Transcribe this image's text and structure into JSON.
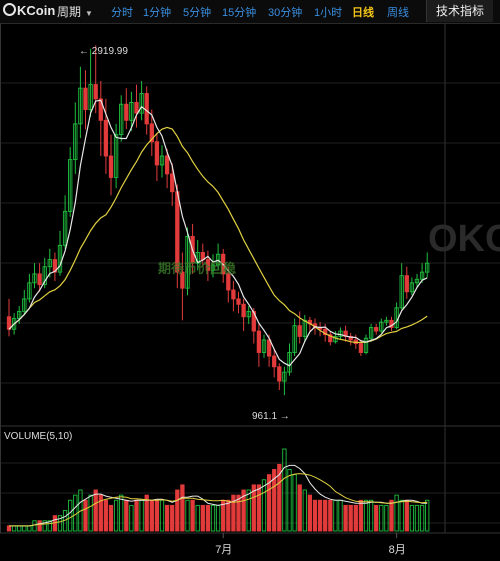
{
  "toolbar": {
    "logo": "KCoin",
    "period_label": "周期",
    "intervals": [
      {
        "label": "分时"
      },
      {
        "label": "1分钟"
      },
      {
        "label": "5分钟"
      },
      {
        "label": "15分钟"
      },
      {
        "label": "30分钟"
      },
      {
        "label": "1小时"
      },
      {
        "label": "日线",
        "active": true
      },
      {
        "label": "周线"
      }
    ],
    "tech_button": "技术指标"
  },
  "watermark": "OKCoin",
  "overlay_caption": "期待币价回稳",
  "price_chart": {
    "high_label": "← 2919.99",
    "low_label": "961.1 →"
  },
  "volume_chart": {
    "title": "VOLUME(5,10)"
  },
  "x_ticks": [
    "7月",
    "8月"
  ],
  "colors": {
    "up": "#1fbf3f",
    "down": "#e23b3b",
    "ma_fast": "#e8e8e8",
    "ma_slow": "#e0d040",
    "grid": "#1f1f1f",
    "tab": "#3a8fe0",
    "tab_active": "#f5c518"
  },
  "chart_data": {
    "type": "candlestick",
    "days": 83,
    "high": 2919.99,
    "low": 961.1,
    "x_tick_positions": [
      {
        "label": "7月",
        "day": 42
      },
      {
        "label": "8月",
        "day": 76
      }
    ],
    "candles": [
      [
        1400,
        1330,
        1500,
        1290,
        "down"
      ],
      [
        1330,
        1390,
        1420,
        1300,
        "up"
      ],
      [
        1390,
        1430,
        1460,
        1360,
        "up"
      ],
      [
        1430,
        1500,
        1550,
        1410,
        "up"
      ],
      [
        1500,
        1590,
        1640,
        1480,
        "up"
      ],
      [
        1590,
        1640,
        1700,
        1560,
        "up"
      ],
      [
        1640,
        1580,
        1700,
        1540,
        "down"
      ],
      [
        1580,
        1680,
        1730,
        1560,
        "up"
      ],
      [
        1680,
        1720,
        1780,
        1620,
        "up"
      ],
      [
        1720,
        1650,
        1760,
        1600,
        "down"
      ],
      [
        1650,
        1800,
        1880,
        1630,
        "up"
      ],
      [
        1800,
        1990,
        2080,
        1780,
        "up"
      ],
      [
        1990,
        2280,
        2350,
        1960,
        "up"
      ],
      [
        2280,
        2480,
        2600,
        2200,
        "up"
      ],
      [
        2480,
        2680,
        2800,
        2400,
        "up"
      ],
      [
        2680,
        2560,
        2780,
        2450,
        "down"
      ],
      [
        2560,
        2700,
        2900,
        2520,
        "up"
      ],
      [
        2700,
        2620,
        2919.99,
        2540,
        "down"
      ],
      [
        2620,
        2500,
        2720,
        2300,
        "down"
      ],
      [
        2500,
        2300,
        2620,
        2200,
        "down"
      ],
      [
        2300,
        2180,
        2420,
        2080,
        "down"
      ],
      [
        2180,
        2420,
        2480,
        2120,
        "up"
      ],
      [
        2420,
        2590,
        2640,
        2380,
        "up"
      ],
      [
        2590,
        2500,
        2680,
        2450,
        "down"
      ],
      [
        2500,
        2600,
        2660,
        2440,
        "up"
      ],
      [
        2600,
        2540,
        2700,
        2460,
        "down"
      ],
      [
        2540,
        2650,
        2720,
        2500,
        "up"
      ],
      [
        2650,
        2480,
        2690,
        2420,
        "down"
      ],
      [
        2480,
        2380,
        2560,
        2300,
        "down"
      ],
      [
        2380,
        2250,
        2430,
        2160,
        "down"
      ],
      [
        2250,
        2300,
        2360,
        2180,
        "up"
      ],
      [
        2300,
        2200,
        2340,
        2120,
        "down"
      ],
      [
        2200,
        2100,
        2260,
        2020,
        "down"
      ],
      [
        2100,
        1650,
        2140,
        1560,
        "down"
      ],
      [
        1650,
        1560,
        1760,
        1380,
        "down"
      ],
      [
        1560,
        1850,
        1900,
        1520,
        "up"
      ],
      [
        1850,
        1700,
        1920,
        1640,
        "down"
      ],
      [
        1700,
        1760,
        1830,
        1660,
        "up"
      ],
      [
        1760,
        1720,
        1810,
        1680,
        "down"
      ],
      [
        1720,
        1660,
        1770,
        1600,
        "down"
      ],
      [
        1660,
        1690,
        1750,
        1620,
        "up"
      ],
      [
        1690,
        1750,
        1810,
        1660,
        "up"
      ],
      [
        1750,
        1640,
        1780,
        1590,
        "down"
      ],
      [
        1640,
        1550,
        1680,
        1480,
        "down"
      ],
      [
        1550,
        1500,
        1600,
        1430,
        "down"
      ],
      [
        1500,
        1470,
        1540,
        1420,
        "down"
      ],
      [
        1470,
        1400,
        1500,
        1320,
        "down"
      ],
      [
        1400,
        1430,
        1460,
        1360,
        "up"
      ],
      [
        1430,
        1320,
        1450,
        1250,
        "down"
      ],
      [
        1320,
        1200,
        1360,
        1120,
        "down"
      ],
      [
        1200,
        1270,
        1300,
        1170,
        "up"
      ],
      [
        1270,
        1180,
        1300,
        1120,
        "down"
      ],
      [
        1180,
        1120,
        1220,
        1060,
        "down"
      ],
      [
        1120,
        1040,
        1140,
        990,
        "down"
      ],
      [
        1040,
        1090,
        1120,
        961.1,
        "up"
      ],
      [
        1090,
        1200,
        1250,
        1070,
        "up"
      ],
      [
        1200,
        1350,
        1390,
        1180,
        "up"
      ],
      [
        1350,
        1290,
        1430,
        1250,
        "down"
      ],
      [
        1290,
        1380,
        1410,
        1260,
        "up"
      ],
      [
        1380,
        1360,
        1400,
        1320,
        "down"
      ],
      [
        1360,
        1340,
        1390,
        1300,
        "down"
      ],
      [
        1340,
        1330,
        1370,
        1290,
        "down"
      ],
      [
        1330,
        1300,
        1360,
        1260,
        "down"
      ],
      [
        1300,
        1260,
        1320,
        1240,
        "down"
      ],
      [
        1260,
        1290,
        1320,
        1250,
        "up"
      ],
      [
        1290,
        1320,
        1340,
        1270,
        "up"
      ],
      [
        1320,
        1290,
        1350,
        1260,
        "down"
      ],
      [
        1290,
        1270,
        1310,
        1240,
        "down"
      ],
      [
        1270,
        1250,
        1300,
        1220,
        "down"
      ],
      [
        1250,
        1200,
        1270,
        1180,
        "down"
      ],
      [
        1200,
        1280,
        1300,
        1190,
        "up"
      ],
      [
        1280,
        1340,
        1360,
        1260,
        "up"
      ],
      [
        1340,
        1320,
        1360,
        1300,
        "down"
      ],
      [
        1320,
        1370,
        1390,
        1310,
        "up"
      ],
      [
        1370,
        1380,
        1400,
        1350,
        "up"
      ],
      [
        1380,
        1340,
        1400,
        1320,
        "down"
      ],
      [
        1340,
        1450,
        1480,
        1330,
        "up"
      ],
      [
        1450,
        1630,
        1700,
        1440,
        "up"
      ],
      [
        1630,
        1540,
        1680,
        1500,
        "down"
      ],
      [
        1540,
        1590,
        1620,
        1520,
        "up"
      ],
      [
        1590,
        1610,
        1640,
        1560,
        "up"
      ],
      [
        1610,
        1650,
        1700,
        1590,
        "up"
      ],
      [
        1650,
        1700,
        1760,
        1620,
        "up"
      ]
    ],
    "volumes": [
      1,
      1,
      1,
      1,
      1,
      2,
      2,
      2,
      2,
      3,
      3,
      4,
      6,
      7,
      8,
      6,
      7,
      8,
      7,
      6,
      5,
      6,
      7,
      6,
      5,
      6,
      6,
      7,
      6,
      6,
      6,
      5,
      5,
      8,
      9,
      6,
      6,
      5,
      5,
      5,
      5,
      5,
      6,
      6,
      7,
      7,
      8,
      8,
      9,
      9,
      10,
      11,
      12,
      13,
      16,
      12,
      11,
      9,
      8,
      7,
      6,
      6,
      6,
      6,
      6,
      6,
      5,
      5,
      5,
      6,
      6,
      6,
      5,
      5,
      5,
      6,
      7,
      6,
      6,
      5,
      5,
      5,
      6
    ]
  }
}
